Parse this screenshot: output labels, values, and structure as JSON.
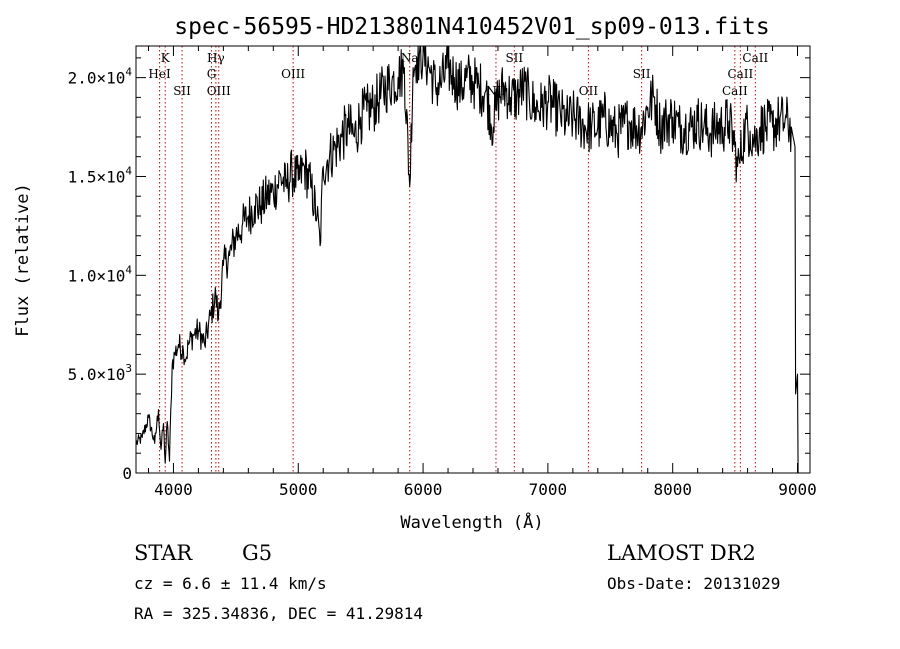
{
  "chart_data": {
    "type": "line",
    "title": "spec-56595-HD213801N410452V01_sp09-013.fits",
    "xlabel": "Wavelength (Å)",
    "ylabel": "Flux (relative)",
    "xlim": [
      3700,
      9100
    ],
    "ylim": [
      0,
      21600
    ],
    "x_ticks": [
      4000,
      5000,
      6000,
      7000,
      8000,
      9000
    ],
    "x_tick_labels": [
      "4000",
      "5000",
      "6000",
      "7000",
      "8000",
      "9000"
    ],
    "y_ticks": [
      0,
      5000,
      10000,
      15000,
      20000
    ],
    "y_tick_labels": [
      {
        "mant": "0",
        "exp": ""
      },
      {
        "mant": "5.0×10",
        "exp": "3"
      },
      {
        "mant": "1.0×10",
        "exp": "4"
      },
      {
        "mant": "1.5×10",
        "exp": "4"
      },
      {
        "mant": "2.0×10",
        "exp": "4"
      }
    ],
    "grid": false,
    "legend": "none",
    "line_color": "#000000",
    "marker_color": "#cc0000",
    "spectrum": {
      "name": "flux",
      "x": [
        3700,
        3750,
        3800,
        3850,
        3880,
        3900,
        3920,
        3934,
        3950,
        3968,
        3990,
        4010,
        4040,
        4080,
        4101,
        4120,
        4160,
        4200,
        4250,
        4300,
        4340,
        4360,
        4400,
        4450,
        4500,
        4550,
        4600,
        4650,
        4700,
        4750,
        4800,
        4861,
        4900,
        4950,
        5000,
        5050,
        5100,
        5150,
        5175,
        5200,
        5250,
        5300,
        5350,
        5400,
        5450,
        5500,
        5550,
        5600,
        5650,
        5700,
        5750,
        5800,
        5850,
        5893,
        5920,
        5950,
        6000,
        6050,
        6100,
        6150,
        6200,
        6250,
        6300,
        6350,
        6400,
        6450,
        6500,
        6563,
        6600,
        6650,
        6700,
        6750,
        6800,
        6850,
        6900,
        6950,
        7000,
        7050,
        7100,
        7150,
        7200,
        7250,
        7300,
        7350,
        7400,
        7450,
        7500,
        7550,
        7600,
        7650,
        7700,
        7750,
        7800,
        7850,
        7900,
        7950,
        8000,
        8050,
        8100,
        8150,
        8200,
        8250,
        8300,
        8350,
        8400,
        8450,
        8498,
        8520,
        8542,
        8580,
        8620,
        8662,
        8700,
        8750,
        8800,
        8850,
        8900,
        8950,
        8980,
        8985,
        9000,
        9005
      ],
      "y": [
        1500,
        1800,
        2800,
        1500,
        3200,
        1200,
        2500,
        500,
        2600,
        600,
        5500,
        6000,
        6500,
        6200,
        5800,
        6500,
        7000,
        7200,
        6500,
        8000,
        9000,
        7800,
        10500,
        11000,
        12000,
        12500,
        13000,
        13500,
        13500,
        14000,
        14200,
        15000,
        14500,
        15200,
        14800,
        15500,
        14500,
        13000,
        11500,
        15500,
        16000,
        16500,
        17000,
        17500,
        17000,
        18000,
        18300,
        18500,
        19000,
        19500,
        19800,
        20000,
        20500,
        14500,
        20500,
        21000,
        21200,
        20500,
        19500,
        19800,
        20500,
        20000,
        19500,
        20000,
        19800,
        19500,
        19300,
        17500,
        19000,
        19500,
        19000,
        19000,
        19500,
        19000,
        18500,
        18500,
        18800,
        18500,
        18200,
        17800,
        18000,
        17800,
        17500,
        17500,
        17500,
        18000,
        17500,
        17200,
        17500,
        17800,
        17500,
        17500,
        18500,
        19000,
        17500,
        17800,
        18000,
        17500,
        17500,
        17500,
        17800,
        17500,
        17200,
        17500,
        17500,
        17800,
        16500,
        15500,
        16000,
        17500,
        17300,
        16800,
        17500,
        17500,
        17500,
        17800,
        17800,
        17500,
        16500,
        4000,
        5000,
        0
      ]
    },
    "line_markers": [
      {
        "label": "K",
        "x": 3934,
        "row": 0
      },
      {
        "label": "HeI",
        "x": 3889,
        "row": 1
      },
      {
        "label": "SII",
        "x": 4069,
        "row": 2
      },
      {
        "label": "Hγ",
        "x": 4340,
        "row": 0
      },
      {
        "label": "G",
        "x": 4305,
        "row": 1
      },
      {
        "label": "OIII",
        "x": 4363,
        "row": 2
      },
      {
        "label": "OIII",
        "x": 4959,
        "row": 1
      },
      {
        "label": "Na",
        "x": 5893,
        "row": 0
      },
      {
        "label": "SII",
        "x": 6731,
        "row": 0
      },
      {
        "label": "NII",
        "x": 6584,
        "row": 2
      },
      {
        "label": "OII",
        "x": 7325,
        "row": 2
      },
      {
        "label": "SII",
        "x": 7751,
        "row": 1
      },
      {
        "label": "CaII",
        "x": 8662,
        "row": 0
      },
      {
        "label": "CaII",
        "x": 8542,
        "row": 1
      },
      {
        "label": "CaII",
        "x": 8498,
        "row": 2
      }
    ]
  },
  "info": {
    "object_class": "STAR",
    "subclass": "G5",
    "survey": "LAMOST DR2",
    "cz_line": "cz = 6.6 ± 11.4 km/s",
    "obs_date_line": "Obs-Date: 20131029",
    "radec_line": "RA = 325.34836, DEC =  41.29814"
  }
}
